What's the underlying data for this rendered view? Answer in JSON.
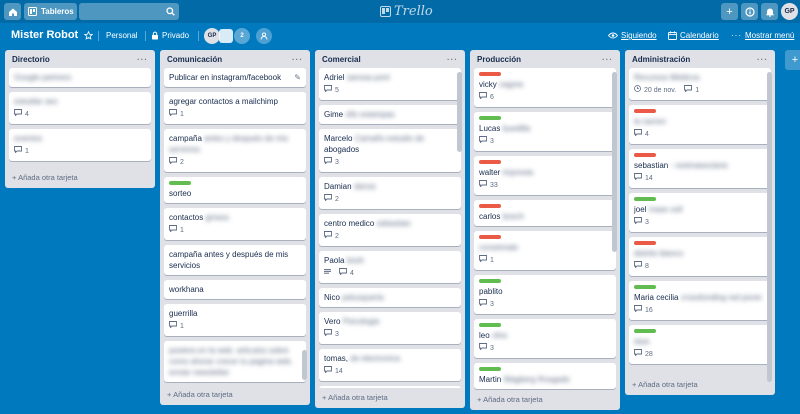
{
  "header": {
    "boards_label": "Tableros",
    "logo_text": "Trello",
    "avatar_initials": "GP"
  },
  "board": {
    "title": "Mister Robot",
    "team": "Personal",
    "visibility": "Privado",
    "member_initials": "GP",
    "member_count": "2",
    "following": "Siguiendo",
    "calendar": "Calendario",
    "menu": "Mostrar menú"
  },
  "add_card_label": "Añada otra tarjeta",
  "lists": [
    {
      "title": "Directorio",
      "cards": [
        {
          "text": "Google partners",
          "blur": true
        },
        {
          "text": "estudiar seo",
          "blur": true,
          "comments": "4"
        },
        {
          "text": "eventos",
          "blur": true,
          "comments": "1"
        }
      ]
    },
    {
      "title": "Comunicación",
      "cards": [
        {
          "text": "Publicar en instagram/facebook",
          "edit": true
        },
        {
          "text": "agregar contactos a mailchimp",
          "comments": "1"
        },
        {
          "text": "campaña",
          "blur_text": "antes y después de mis servicios",
          "comments": "2"
        },
        {
          "text": "sorteo",
          "label": "green"
        },
        {
          "text": "contactos",
          "blur_text": "gmess",
          "comments": "1"
        },
        {
          "text": "campaña antes y después de mis servicios"
        },
        {
          "text": "workhana"
        },
        {
          "text": "guerrilla",
          "comments": "1"
        },
        {
          "text": "postera en la web. articulos sobre como ahorar crecer tu pagina web. enviar newsletter",
          "blur": true
        }
      ]
    },
    {
      "title": "Comercial",
      "cards": [
        {
          "text": "Adriel",
          "blur_text": "sanssa pont",
          "comments": "5"
        },
        {
          "text": "Gime",
          "blur_text": "ofis estampas"
        },
        {
          "text": "Marcelo",
          "blur_text": "Camaño estudio de",
          "text2": "abogados",
          "comments": "3"
        },
        {
          "text": "Damian",
          "blur_text": "danza",
          "comments": "2"
        },
        {
          "text": "centro medico",
          "blur_text": "sebastian",
          "comments": "2"
        },
        {
          "text": "Paola",
          "blur_text": "bosh",
          "description": true,
          "comments": "4"
        },
        {
          "text": "Nico",
          "blur_text": "pelusqueria"
        },
        {
          "text": "Vero",
          "blur_text": "Psicologia",
          "comments": "3"
        },
        {
          "text": "tomas,",
          "blur_text": "de electronica",
          "comments": "14"
        },
        {
          "text": "",
          "label": "green"
        }
      ]
    },
    {
      "title": "Producción",
      "cards": [
        {
          "text": "vicky",
          "blur_text": "nagme",
          "label": "red",
          "comments": "6"
        },
        {
          "text": "Lucas",
          "blur_text": "buedilla",
          "label": "green",
          "comments": "3"
        },
        {
          "text": "walter",
          "blur_text": "impresta",
          "label": "red",
          "comments": "33"
        },
        {
          "text": "carlos",
          "blur_text": "bosch",
          "label": "red"
        },
        {
          "text": "corseimate",
          "blur": true,
          "label": "red",
          "comments": "1"
        },
        {
          "text": "pablito",
          "label": "green",
          "comments": "3"
        },
        {
          "text": "leo",
          "blur_text": "vitra",
          "label": "green",
          "comments": "3"
        },
        {
          "text": "Martin",
          "blur_text": "Wagberg Rosgado",
          "label": "green"
        }
      ]
    },
    {
      "title": "Administración",
      "cards": [
        {
          "text": "Recursos Médicos",
          "blur": true,
          "date": "20 de nov.",
          "comments": "1"
        },
        {
          "text": "la nacion",
          "blur": true,
          "label": "red",
          "comments": "4"
        },
        {
          "text": "sebastian",
          "blur_text": "- restmaesclaria",
          "label": "red",
          "comments": "14"
        },
        {
          "text": "joel",
          "blur_text": "mase soll",
          "label": "green",
          "comments": "3"
        },
        {
          "text": "distrito blanco",
          "blur": true,
          "label": "red",
          "comments": "8"
        },
        {
          "text": "Maria cecilia",
          "blur_text": "crossfunding red pover",
          "label": "green",
          "comments": "16"
        },
        {
          "text": "tasa",
          "blur": true,
          "label": "green",
          "comments": "28"
        }
      ]
    }
  ]
}
